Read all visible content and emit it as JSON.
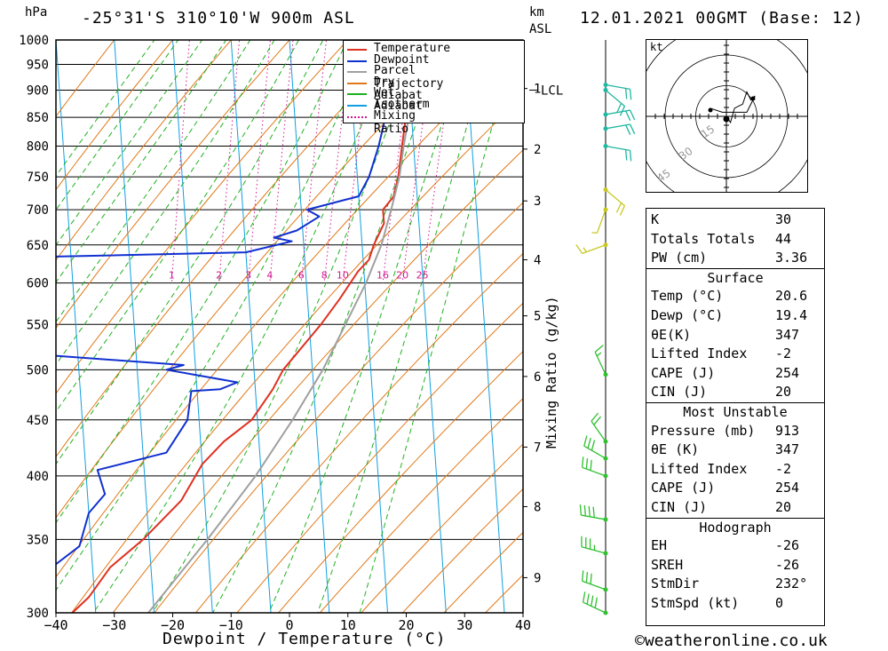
{
  "header": {
    "location": "-25°31'S 310°10'W 900m ASL",
    "datetime": "12.01.2021 00GMT (Base: 12)",
    "hpa_unit": "hPa",
    "km_unit": "km",
    "asl_unit": "ASL"
  },
  "colors": {
    "temperature": "#e03020",
    "dewpoint": "#1030d0",
    "parcel": "#a0a0a0",
    "dry_adiabat": "#e07818",
    "wet_adiabat": "#20b020",
    "isotherm": "#10a0e0",
    "mixing_ratio": "#d01890"
  },
  "legend": [
    {
      "label": "Temperature",
      "color": "#e03020",
      "style": "solid"
    },
    {
      "label": "Dewpoint",
      "color": "#1030d0",
      "style": "solid"
    },
    {
      "label": "Parcel Trajectory",
      "color": "#a0a0a0",
      "style": "solid"
    },
    {
      "label": "Dry Adiabat",
      "color": "#e07818",
      "style": "solid"
    },
    {
      "label": "Wet Adiabat",
      "color": "#20b020",
      "style": "solid"
    },
    {
      "label": "Isotherm",
      "color": "#10a0e0",
      "style": "solid"
    },
    {
      "label": "Mixing Ratio",
      "color": "#d01890",
      "style": "dotted"
    }
  ],
  "stats": {
    "top": [
      {
        "label": "K",
        "value": "30"
      },
      {
        "label": "Totals Totals",
        "value": "44"
      },
      {
        "label": "PW (cm)",
        "value": "3.36"
      }
    ],
    "surface_title": "Surface",
    "surface": [
      {
        "label": "Temp (°C)",
        "value": "20.6"
      },
      {
        "label": "Dewp (°C)",
        "value": "19.4"
      },
      {
        "label": "θE(K)",
        "value": "347"
      },
      {
        "label": "Lifted Index",
        "value": "-2"
      },
      {
        "label": "CAPE (J)",
        "value": "254"
      },
      {
        "label": "CIN (J)",
        "value": "20"
      }
    ],
    "mu_title": "Most Unstable",
    "most_unstable": [
      {
        "label": "Pressure (mb)",
        "value": "913"
      },
      {
        "label": "θE (K)",
        "value": "347"
      },
      {
        "label": "Lifted Index",
        "value": "-2"
      },
      {
        "label": "CAPE (J)",
        "value": "254"
      },
      {
        "label": "CIN (J)",
        "value": "20"
      }
    ],
    "hodo_title": "Hodograph",
    "hodograph": [
      {
        "label": "EH",
        "value": "-26"
      },
      {
        "label": "SREH",
        "value": "-26"
      },
      {
        "label": "StmDir",
        "value": "232°"
      },
      {
        "label": "StmSpd (kt)",
        "value": "0"
      }
    ]
  },
  "hodo": {
    "unit": "kt",
    "rings": [
      "15",
      "30",
      "45"
    ],
    "trace": [
      [
        0,
        0
      ],
      [
        2,
        -3
      ],
      [
        4,
        4
      ],
      [
        8,
        6
      ],
      [
        10,
        12
      ],
      [
        12,
        8
      ],
      [
        14,
        10
      ],
      [
        10,
        2
      ],
      [
        -2,
        2
      ],
      [
        -8,
        4
      ]
    ]
  },
  "footer": {
    "copyright": "©weatheronline.co.uk"
  },
  "chart_data": {
    "type": "line",
    "title": "Skew-T log-P diagram",
    "xlabel": "Dewpoint / Temperature (°C)",
    "ylabel": "hPa",
    "y2label": "Mixing Ratio (g/kg)",
    "xlim": [
      -40,
      40
    ],
    "ylim": [
      1000,
      300
    ],
    "x_ticks": [
      -40,
      -30,
      -20,
      -10,
      0,
      10,
      20,
      30,
      40
    ],
    "pressure_ticks": [
      300,
      350,
      400,
      450,
      500,
      550,
      600,
      650,
      700,
      750,
      800,
      850,
      900,
      950,
      1000
    ],
    "km_ticks": [
      {
        "label": "9",
        "p": 323
      },
      {
        "label": "8",
        "p": 375
      },
      {
        "label": "7",
        "p": 425
      },
      {
        "label": "6",
        "p": 493
      },
      {
        "label": "5",
        "p": 560
      },
      {
        "label": "4",
        "p": 630
      },
      {
        "label": "3",
        "p": 713
      },
      {
        "label": "2",
        "p": 795
      },
      {
        "label": "1",
        "p": 903
      }
    ],
    "lcl": {
      "label": "LCL",
      "p": 900
    },
    "mixing_ratio_labels": [
      "1",
      "2",
      "3",
      "4",
      "6",
      "8",
      "10",
      "16",
      "20",
      "25"
    ],
    "mixing_ratio_values": [
      1,
      2,
      3,
      4,
      6,
      8,
      10,
      16,
      20,
      25
    ],
    "series": [
      {
        "name": "Temperature",
        "points": [
          [
            913,
            20.6
          ],
          [
            900,
            21
          ],
          [
            850,
            19
          ],
          [
            800,
            18
          ],
          [
            750,
            17
          ],
          [
            720,
            16
          ],
          [
            700,
            14
          ],
          [
            680,
            14
          ],
          [
            650,
            12
          ],
          [
            630,
            11
          ],
          [
            615,
            9
          ],
          [
            580,
            5.5
          ],
          [
            550,
            2
          ],
          [
            500,
            -5
          ],
          [
            480,
            -7
          ],
          [
            450,
            -11
          ],
          [
            430,
            -16
          ],
          [
            410,
            -20
          ],
          [
            380,
            -24
          ],
          [
            350,
            -31
          ],
          [
            330,
            -37
          ],
          [
            310,
            -41
          ],
          [
            300,
            -44
          ]
        ]
      },
      {
        "name": "Dewpoint",
        "points": [
          [
            913,
            19.4
          ],
          [
            880,
            17
          ],
          [
            850,
            15.5
          ],
          [
            800,
            14
          ],
          [
            750,
            12
          ],
          [
            720,
            10
          ],
          [
            700,
            1
          ],
          [
            690,
            3
          ],
          [
            670,
            -1
          ],
          [
            660,
            -5
          ],
          [
            655,
            -2
          ],
          [
            640,
            -10
          ],
          [
            633,
            -50
          ],
          [
            600,
            -55
          ],
          [
            520,
            -55
          ],
          [
            505,
            -22
          ],
          [
            500,
            -25
          ],
          [
            487,
            -13
          ],
          [
            480,
            -16
          ],
          [
            478,
            -21
          ],
          [
            450,
            -22
          ],
          [
            420,
            -26
          ],
          [
            405,
            -38
          ],
          [
            385,
            -37
          ],
          [
            370,
            -40
          ],
          [
            345,
            -42
          ],
          [
            330,
            -47
          ],
          [
            300,
            -48
          ]
        ]
      },
      {
        "name": "Parcel Trajectory",
        "points": [
          [
            913,
            20.6
          ],
          [
            850,
            19.5
          ],
          [
            800,
            18.3
          ],
          [
            750,
            17.2
          ],
          [
            700,
            15.4
          ],
          [
            650,
            13.3
          ],
          [
            600,
            10.2
          ],
          [
            550,
            6.2
          ],
          [
            500,
            1.8
          ],
          [
            450,
            -4
          ],
          [
            400,
            -11
          ],
          [
            350,
            -20
          ],
          [
            300,
            -31
          ]
        ]
      }
    ],
    "wind_barbs": [
      {
        "p": 300,
        "dir": 295,
        "spd": 40
      },
      {
        "p": 315,
        "dir": 290,
        "spd": 30
      },
      {
        "p": 340,
        "dir": 285,
        "spd": 35
      },
      {
        "p": 365,
        "dir": 280,
        "spd": 40
      },
      {
        "p": 400,
        "dir": 290,
        "spd": 30
      },
      {
        "p": 415,
        "dir": 300,
        "spd": 30
      },
      {
        "p": 430,
        "dir": 325,
        "spd": 20
      },
      {
        "p": 495,
        "dir": 335,
        "spd": 15
      },
      {
        "p": 650,
        "dir": 250,
        "spd": 15
      },
      {
        "p": 700,
        "dir": 200,
        "spd": 5
      },
      {
        "p": 730,
        "dir": 130,
        "spd": 20
      },
      {
        "p": 800,
        "dir": 100,
        "spd": 20
      },
      {
        "p": 830,
        "dir": 80,
        "spd": 20
      },
      {
        "p": 855,
        "dir": 80,
        "spd": 20
      },
      {
        "p": 900,
        "dir": 130,
        "spd": 20
      },
      {
        "p": 910,
        "dir": 100,
        "spd": 20
      }
    ]
  }
}
